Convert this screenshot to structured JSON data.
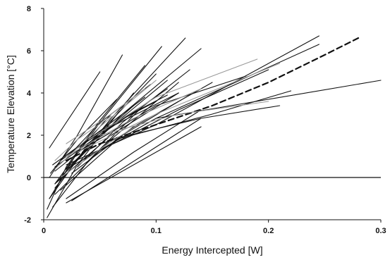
{
  "chart_data": {
    "type": "line",
    "title": "",
    "xlabel": "Energy Intercepted [W]",
    "ylabel": "Temperature Elevation [°C]",
    "xlim": [
      0,
      0.3
    ],
    "ylim": [
      -2,
      8
    ],
    "x_ticks": [
      "0",
      "0.1",
      "0.2",
      "0.3"
    ],
    "y_ticks": [
      "-2",
      "0",
      "2",
      "4",
      "6",
      "8"
    ],
    "grid": false,
    "legend": "none",
    "reference_line": {
      "y": 0
    },
    "series": [
      {
        "style": "dashed",
        "color": "#111111",
        "x": [
          0.02,
          0.05,
          0.1,
          0.15,
          0.2,
          0.25,
          0.28
        ],
        "y": [
          0.8,
          1.6,
          2.5,
          3.4,
          4.5,
          5.8,
          6.6
        ]
      },
      {
        "style": "solid",
        "color": "#111111",
        "x": [
          0.005,
          0.05
        ],
        "y": [
          1.4,
          5.0
        ]
      },
      {
        "style": "solid",
        "color": "#111111",
        "x": [
          0.005,
          0.03,
          0.07
        ],
        "y": [
          0.0,
          2.0,
          5.8
        ]
      },
      {
        "style": "solid",
        "color": "#111111",
        "x": [
          0.01,
          0.05,
          0.105
        ],
        "y": [
          -0.3,
          2.6,
          6.2
        ]
      },
      {
        "style": "solid",
        "color": "#111111",
        "x": [
          0.01,
          0.06,
          0.126
        ],
        "y": [
          -0.5,
          2.8,
          6.6
        ]
      },
      {
        "style": "solid",
        "color": "#111111",
        "x": [
          0.015,
          0.07,
          0.14
        ],
        "y": [
          0.0,
          3.0,
          6.1
        ]
      },
      {
        "style": "solid",
        "color": "#111111",
        "x": [
          0.003,
          0.02,
          0.05,
          0.09
        ],
        "y": [
          -1.5,
          0.5,
          2.7,
          5.3
        ]
      },
      {
        "style": "solid",
        "color": "#111111",
        "x": [
          0.005,
          0.04,
          0.1
        ],
        "y": [
          -1.0,
          1.6,
          4.9
        ]
      },
      {
        "style": "solid",
        "color": "#111111",
        "x": [
          0.003,
          0.03,
          0.08
        ],
        "y": [
          -1.9,
          0.6,
          4.0
        ]
      },
      {
        "style": "solid",
        "color": "#111111",
        "x": [
          0.01,
          0.06,
          0.12
        ],
        "y": [
          -0.8,
          1.8,
          4.5
        ]
      },
      {
        "style": "solid",
        "color": "#111111",
        "x": [
          0.02,
          0.08,
          0.14
        ],
        "y": [
          -1.0,
          1.2,
          3.2
        ]
      },
      {
        "style": "solid",
        "color": "#111111",
        "x": [
          0.02,
          0.14
        ],
        "y": [
          -1.2,
          2.4
        ]
      },
      {
        "style": "solid",
        "color": "#111111",
        "x": [
          0.025,
          0.14
        ],
        "y": [
          -1.1,
          2.8
        ]
      },
      {
        "style": "solid",
        "color": "#111111",
        "x": [
          0.01,
          0.06,
          0.12
        ],
        "y": [
          0.5,
          2.4,
          4.0
        ]
      },
      {
        "style": "solid",
        "color": "#111111",
        "x": [
          0.008,
          0.05,
          0.1
        ],
        "y": [
          0.6,
          2.2,
          3.6
        ]
      },
      {
        "style": "solid",
        "color": "#111111",
        "x": [
          0.012,
          0.04,
          0.08
        ],
        "y": [
          -0.2,
          1.5,
          3.4
        ]
      },
      {
        "style": "solid",
        "color": "#111111",
        "x": [
          0.02,
          0.06,
          0.11
        ],
        "y": [
          0.4,
          2.4,
          4.6
        ]
      },
      {
        "style": "solid",
        "color": "#111111",
        "x": [
          0.03,
          0.07,
          0.13
        ],
        "y": [
          0.5,
          2.6,
          5.1
        ]
      },
      {
        "style": "solid",
        "color": "#111111",
        "x": [
          0.015,
          0.05,
          0.09
        ],
        "y": [
          0.8,
          2.2,
          3.8
        ]
      },
      {
        "style": "solid",
        "color": "#111111",
        "x": [
          0.005,
          0.03,
          0.06
        ],
        "y": [
          -1.0,
          1.2,
          3.0
        ]
      },
      {
        "style": "solid",
        "color": "#111111",
        "x": [
          0.008,
          0.04,
          0.085
        ],
        "y": [
          -1.4,
          0.8,
          3.2
        ]
      },
      {
        "style": "solid",
        "color": "#111111",
        "x": [
          0.02,
          0.1,
          0.245
        ],
        "y": [
          0.6,
          2.5,
          6.7
        ]
      },
      {
        "style": "solid",
        "color": "#111111",
        "x": [
          0.02,
          0.1,
          0.245
        ],
        "y": [
          0.4,
          2.8,
          6.3
        ]
      },
      {
        "style": "solid",
        "color": "#111111",
        "x": [
          0.04,
          0.12,
          0.2
        ],
        "y": [
          1.0,
          3.2,
          5.1
        ]
      },
      {
        "style": "solid",
        "color": "#111111",
        "x": [
          0.1,
          0.2,
          0.3
        ],
        "y": [
          2.8,
          3.7,
          4.6
        ]
      },
      {
        "style": "solid",
        "color": "#111111",
        "x": [
          0.05,
          0.15,
          0.22
        ],
        "y": [
          1.6,
          3.0,
          4.1
        ]
      },
      {
        "style": "solid",
        "color": "#111111",
        "x": [
          0.06,
          0.14,
          0.21
        ],
        "y": [
          1.8,
          2.8,
          3.4
        ]
      },
      {
        "style": "solid",
        "color": "#111111",
        "x": [
          0.03,
          0.1,
          0.18
        ],
        "y": [
          1.2,
          3.4,
          4.8
        ]
      },
      {
        "style": "solid",
        "color": "#111111",
        "x": [
          0.025,
          0.08,
          0.15
        ],
        "y": [
          0.2,
          2.4,
          4.5
        ]
      },
      {
        "style": "solid",
        "color": "#111111",
        "x": [
          0.01,
          0.05,
          0.11
        ],
        "y": [
          0.3,
          2.0,
          4.2
        ]
      },
      {
        "style": "solid",
        "color": "#111111",
        "x": [
          0.03,
          0.07,
          0.11
        ],
        "y": [
          1.4,
          2.8,
          3.9
        ]
      },
      {
        "style": "solid",
        "color": "#111111",
        "x": [
          0.006,
          0.03,
          0.065
        ],
        "y": [
          0.2,
          1.8,
          3.7
        ]
      },
      {
        "style": "solid",
        "color": "#111111",
        "x": [
          0.01,
          0.06,
          0.12
        ],
        "y": [
          -0.3,
          2.0,
          4.0
        ]
      },
      {
        "style": "solid",
        "color": "#111111",
        "x": [
          0.02,
          0.05,
          0.095
        ],
        "y": [
          0.9,
          2.6,
          4.4
        ]
      },
      {
        "style": "solid",
        "color": "#111111",
        "x": [
          0.015,
          0.07,
          0.12
        ],
        "y": [
          -0.6,
          2.0,
          3.6
        ]
      },
      {
        "style": "solid",
        "color": "#999999",
        "x": [
          0.02,
          0.08,
          0.14
        ],
        "y": [
          1.0,
          2.8,
          4.2
        ]
      },
      {
        "style": "solid",
        "color": "#999999",
        "x": [
          0.01,
          0.05,
          0.1
        ],
        "y": [
          0.4,
          2.4,
          4.6
        ]
      },
      {
        "style": "solid",
        "color": "#999999",
        "x": [
          0.03,
          0.1,
          0.21
        ],
        "y": [
          1.2,
          3.0,
          5.4
        ]
      },
      {
        "style": "solid",
        "color": "#999999",
        "x": [
          0.015,
          0.06,
          0.1
        ],
        "y": [
          0.0,
          1.7,
          3.0
        ]
      },
      {
        "style": "solid",
        "color": "#999999",
        "x": [
          0.05,
          0.12,
          0.2
        ],
        "y": [
          2.0,
          3.0,
          3.6
        ]
      },
      {
        "style": "solid",
        "color": "#999999",
        "x": [
          0.02,
          0.06,
          0.09
        ],
        "y": [
          1.6,
          3.0,
          4.2
        ]
      },
      {
        "style": "solid",
        "color": "#999999",
        "x": [
          0.04,
          0.1,
          0.19
        ],
        "y": [
          1.8,
          3.8,
          5.6
        ]
      },
      {
        "style": "solid",
        "color": "#999999",
        "x": [
          0.01,
          0.03,
          0.06
        ],
        "y": [
          0.8,
          1.8,
          2.9
        ]
      }
    ]
  }
}
